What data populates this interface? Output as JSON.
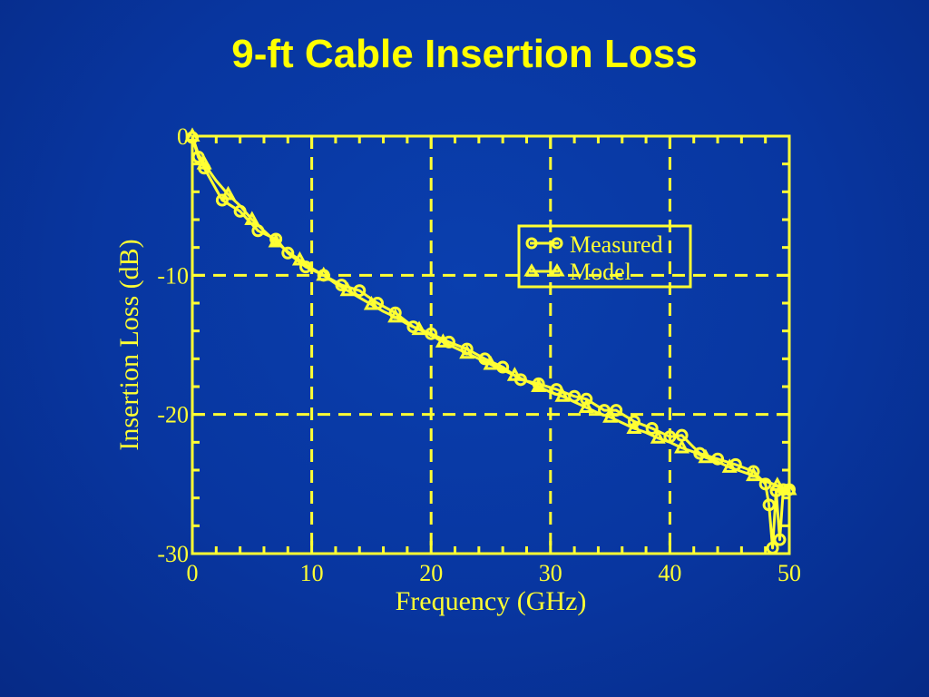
{
  "slide": {
    "title": "9-ft Cable Insertion Loss"
  },
  "colors": {
    "background": "#0836a0",
    "title": "#ffff00",
    "plot": "#ffff33"
  },
  "chart_data": {
    "type": "line",
    "title": "9-ft Cable Insertion Loss",
    "xlabel": "Frequency (GHz)",
    "ylabel": "Insertion Loss (dB)",
    "xlim": [
      0,
      50
    ],
    "ylim": [
      -30,
      0
    ],
    "x_ticks": [
      "0",
      "10",
      "20",
      "30",
      "40",
      "50"
    ],
    "y_ticks": [
      "0",
      "-10",
      "-20",
      "-30"
    ],
    "grid": true,
    "legend": {
      "position": "top-right",
      "entries": [
        "Measured",
        "Model"
      ]
    },
    "series": [
      {
        "name": "Measured",
        "marker": "circle",
        "x": [
          0,
          0.5,
          1,
          2.5,
          4,
          5.5,
          7,
          8,
          9.5,
          11,
          12.5,
          14,
          15.5,
          17,
          18.5,
          20,
          21.5,
          23,
          24.5,
          26,
          27.5,
          29,
          30.5,
          32,
          33,
          34.5,
          35.5,
          37,
          38.5,
          40,
          41,
          42.5,
          44,
          45.5,
          47,
          48,
          48.3,
          48.6,
          48.9,
          49.2,
          49.5,
          50
        ],
        "y": [
          -0.1,
          -1.5,
          -2.3,
          -4.6,
          -5.4,
          -6.8,
          -7.4,
          -8.4,
          -9.4,
          -10.0,
          -10.7,
          -11.1,
          -12.0,
          -12.7,
          -13.7,
          -14.2,
          -14.8,
          -15.3,
          -16.0,
          -16.6,
          -17.5,
          -17.8,
          -18.2,
          -18.7,
          -18.9,
          -19.7,
          -19.7,
          -20.5,
          -21.0,
          -21.6,
          -21.5,
          -22.8,
          -23.2,
          -23.6,
          -24.1,
          -25.0,
          -26.5,
          -29.6,
          -25.5,
          -29.0,
          -25.4,
          -25.4
        ]
      },
      {
        "name": "Model",
        "marker": "triangle",
        "x": [
          0,
          0.5,
          1,
          2,
          3,
          4,
          5,
          6,
          7,
          8,
          9,
          10,
          11,
          12,
          13,
          14,
          15,
          16,
          17,
          18,
          19,
          20,
          21,
          22,
          23,
          24,
          25,
          26,
          27,
          28,
          29,
          30,
          31,
          32,
          33,
          34,
          35,
          36,
          37,
          38,
          39,
          40,
          41,
          42,
          43,
          44,
          45,
          46,
          47,
          48,
          49,
          50
        ],
        "y": [
          0,
          -1.3,
          -2.0,
          -3.2,
          -4.2,
          -5.0,
          -6.0,
          -6.8,
          -7.6,
          -8.3,
          -8.9,
          -9.5,
          -10.0,
          -10.6,
          -11.1,
          -11.6,
          -12.1,
          -12.6,
          -13.0,
          -13.5,
          -13.9,
          -14.3,
          -14.8,
          -15.2,
          -15.6,
          -16.0,
          -16.4,
          -16.8,
          -17.2,
          -17.6,
          -18.0,
          -18.4,
          -18.7,
          -19.1,
          -19.5,
          -19.9,
          -20.2,
          -20.6,
          -21.0,
          -21.3,
          -21.7,
          -22.0,
          -22.4,
          -22.7,
          -23.1,
          -23.4,
          -23.8,
          -24.1,
          -24.4,
          -24.8,
          -25.1,
          -25.4
        ]
      }
    ]
  }
}
